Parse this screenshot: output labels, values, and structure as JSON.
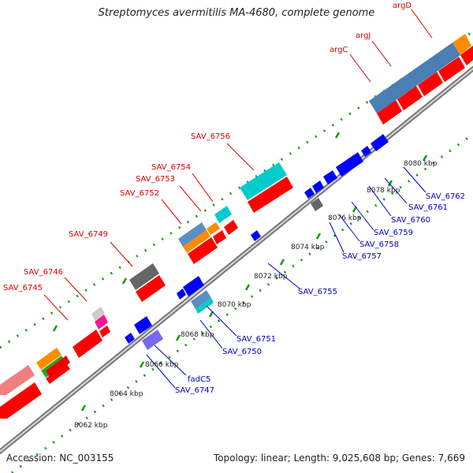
{
  "title": "Streptomyces avermitilis MA-4680, complete genome",
  "accession": "Accession: NC_003155",
  "summary": "Topology: linear; Length: 9,025,608 bp; Genes: 7,669",
  "kbp_labels": [
    "8062 kbp",
    "8064 kbp",
    "8066 kbp",
    "8068 kbp",
    "8070 kbp",
    "8072 kbp",
    "8074 kbp",
    "8076 kbp",
    "8078 kbp",
    "8080 kbp"
  ],
  "genes_top": [
    "argD",
    "argJ",
    "argC",
    "SAV_6756",
    "SAV_6754",
    "SAV_6753",
    "SAV_6752",
    "SAV_6749",
    "SAV_6746",
    "SAV_6745"
  ],
  "genes_bottom": [
    "SAV_6762",
    "SAV_6761",
    "SAV_6760",
    "SAV_6759",
    "SAV_6758",
    "SAV_6757",
    "SAV_6755",
    "SAV_6751",
    "SAV_6750",
    "fadC5",
    "SAV_6747"
  ],
  "colors": {
    "top_label": "#dd0000",
    "bottom_label": "#0000cc",
    "cds": "#ff0000",
    "gene_blue": "#0000ff",
    "backbone": "#999999",
    "tick": "#119911"
  }
}
